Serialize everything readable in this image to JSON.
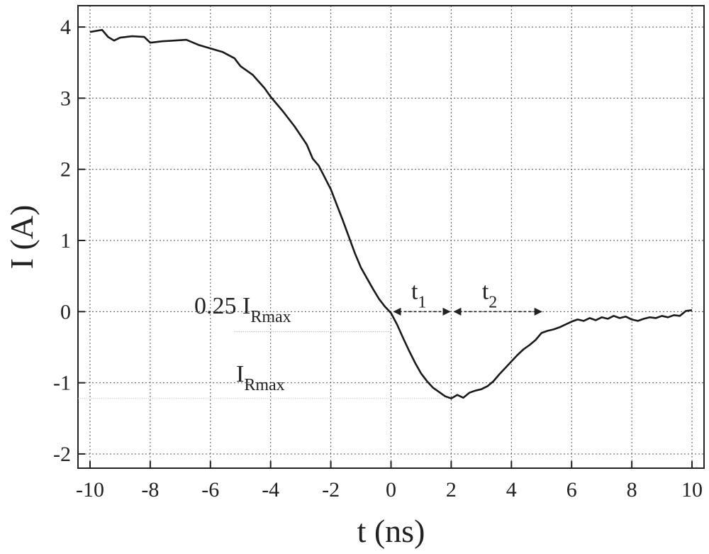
{
  "chart_data": {
    "type": "line",
    "xlabel": "t (ns)",
    "ylabel": "I (A)",
    "xlim": [
      -10.4,
      10.4
    ],
    "ylim": [
      -2.2,
      4.3
    ],
    "grid": true,
    "xticks": [
      -10,
      -8,
      -6,
      -4,
      -2,
      0,
      2,
      4,
      6,
      8,
      10
    ],
    "yticks": [
      -2,
      -1,
      0,
      1,
      2,
      3,
      4
    ],
    "xtick_labels": [
      "-10",
      "-8",
      "-6",
      "-4",
      "-2",
      "0",
      "2",
      "4",
      "6",
      "8",
      "10"
    ],
    "ytick_labels": [
      "-2",
      "-1",
      "0",
      "1",
      "2",
      "3",
      "4"
    ],
    "series": [
      {
        "color": "#1a1a1a",
        "x": [
          -10.0,
          -9.6,
          -9.4,
          -9.2,
          -9.0,
          -8.6,
          -8.2,
          -8.0,
          -7.6,
          -7.2,
          -6.8,
          -6.4,
          -6.0,
          -5.6,
          -5.2,
          -5.0,
          -4.6,
          -4.2,
          -4.0,
          -3.6,
          -3.2,
          -2.8,
          -2.6,
          -2.4,
          -2.0,
          -1.8,
          -1.6,
          -1.4,
          -1.2,
          -1.0,
          -0.8,
          -0.6,
          -0.4,
          -0.2,
          0.0,
          0.2,
          0.4,
          0.6,
          0.8,
          1.0,
          1.2,
          1.4,
          1.6,
          1.8,
          2.0,
          2.2,
          2.4,
          2.6,
          2.8,
          3.0,
          3.2,
          3.4,
          3.6,
          3.8,
          4.0,
          4.2,
          4.4,
          4.6,
          4.8,
          5.0,
          5.2,
          5.4,
          5.6,
          5.8,
          6.0,
          6.2,
          6.4,
          6.6,
          6.8,
          7.0,
          7.2,
          7.4,
          7.6,
          7.8,
          8.0,
          8.2,
          8.4,
          8.6,
          8.8,
          9.0,
          9.2,
          9.4,
          9.6,
          9.8,
          10.0
        ],
        "y": [
          3.93,
          3.96,
          3.86,
          3.81,
          3.85,
          3.87,
          3.86,
          3.78,
          3.8,
          3.81,
          3.82,
          3.75,
          3.7,
          3.65,
          3.56,
          3.45,
          3.33,
          3.14,
          3.02,
          2.82,
          2.6,
          2.35,
          2.15,
          2.05,
          1.72,
          1.5,
          1.28,
          1.05,
          0.82,
          0.62,
          0.47,
          0.32,
          0.18,
          0.07,
          -0.02,
          -0.18,
          -0.37,
          -0.55,
          -0.72,
          -0.87,
          -0.98,
          -1.07,
          -1.13,
          -1.19,
          -1.22,
          -1.17,
          -1.21,
          -1.14,
          -1.11,
          -1.09,
          -1.05,
          -0.98,
          -0.88,
          -0.79,
          -0.7,
          -0.61,
          -0.53,
          -0.47,
          -0.4,
          -0.3,
          -0.27,
          -0.25,
          -0.22,
          -0.18,
          -0.14,
          -0.11,
          -0.13,
          -0.09,
          -0.12,
          -0.08,
          -0.1,
          -0.06,
          -0.09,
          -0.07,
          -0.11,
          -0.13,
          -0.1,
          -0.08,
          -0.09,
          -0.06,
          -0.08,
          -0.05,
          -0.06,
          0.01,
          0.02
        ]
      }
    ],
    "annotations": {
      "t1_label": "t",
      "t1_sub": "1",
      "t2_label": "t",
      "t2_sub": "2",
      "quarter_label": "0.25 I",
      "quarter_sub": "Rmax",
      "irmax_label": "I",
      "irmax_sub": "Rmax",
      "t1_range": [
        0.0,
        2.0
      ],
      "t2_range": [
        2.0,
        5.0
      ],
      "quarter_level": -0.28,
      "irmax_level": -1.22
    }
  }
}
